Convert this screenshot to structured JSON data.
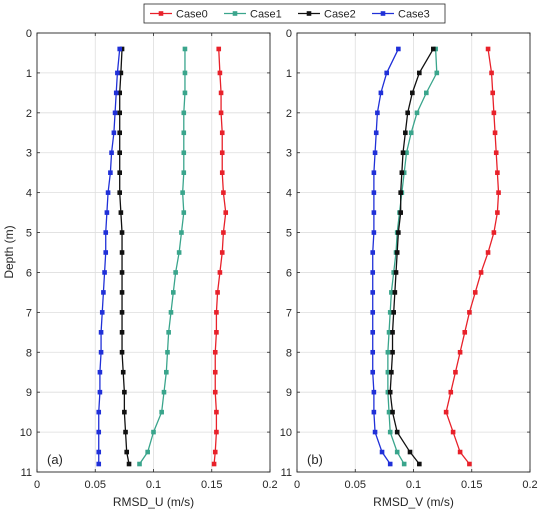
{
  "chart_data": {
    "type": "line",
    "legend": {
      "placement": "top-center",
      "entries": [
        "Case0",
        "Case1",
        "Case2",
        "Case3"
      ]
    },
    "colors": {
      "Case0": "#e8212a",
      "Case1": "#3aa58c",
      "Case2": "#111111",
      "Case3": "#2030d8"
    },
    "shared": {
      "ylabel": "Depth (m)",
      "ylim": [
        0,
        11
      ],
      "y_reversed": true,
      "yticks": [
        "0",
        "1",
        "2",
        "3",
        "4",
        "5",
        "6",
        "7",
        "8",
        "9",
        "10",
        "11"
      ],
      "xlim": [
        0,
        0.2
      ],
      "xticks": [
        "0",
        "0.05",
        "0.1",
        "0.15",
        "0.2"
      ],
      "grid": true
    },
    "panels": [
      {
        "id": "a",
        "panel_label": "(a)",
        "xlabel": "RMSD_U (m/s)",
        "series": [
          {
            "name": "Case0",
            "points": [
              [
                0.156,
                0.4
              ],
              [
                0.157,
                1
              ],
              [
                0.158,
                1.5
              ],
              [
                0.158,
                2
              ],
              [
                0.159,
                2.5
              ],
              [
                0.159,
                3
              ],
              [
                0.159,
                3.5
              ],
              [
                0.16,
                4
              ],
              [
                0.162,
                4.5
              ],
              [
                0.16,
                5
              ],
              [
                0.159,
                5.5
              ],
              [
                0.157,
                6
              ],
              [
                0.155,
                6.5
              ],
              [
                0.154,
                7
              ],
              [
                0.154,
                7.5
              ],
              [
                0.153,
                8
              ],
              [
                0.153,
                8.5
              ],
              [
                0.153,
                9
              ],
              [
                0.154,
                9.5
              ],
              [
                0.154,
                10
              ],
              [
                0.153,
                10.5
              ],
              [
                0.152,
                10.8
              ]
            ]
          },
          {
            "name": "Case1",
            "points": [
              [
                0.127,
                0.4
              ],
              [
                0.127,
                1
              ],
              [
                0.127,
                1.5
              ],
              [
                0.126,
                2
              ],
              [
                0.126,
                2.5
              ],
              [
                0.126,
                3
              ],
              [
                0.126,
                3.5
              ],
              [
                0.125,
                4
              ],
              [
                0.126,
                4.5
              ],
              [
                0.124,
                5
              ],
              [
                0.122,
                5.5
              ],
              [
                0.119,
                6
              ],
              [
                0.117,
                6.5
              ],
              [
                0.115,
                7
              ],
              [
                0.113,
                7.5
              ],
              [
                0.112,
                8
              ],
              [
                0.111,
                8.5
              ],
              [
                0.109,
                9
              ],
              [
                0.107,
                9.5
              ],
              [
                0.1,
                10
              ],
              [
                0.095,
                10.5
              ],
              [
                0.088,
                10.8
              ]
            ]
          },
          {
            "name": "Case2",
            "points": [
              [
                0.073,
                0.4
              ],
              [
                0.072,
                1
              ],
              [
                0.071,
                1.5
              ],
              [
                0.071,
                2
              ],
              [
                0.071,
                2.5
              ],
              [
                0.071,
                3
              ],
              [
                0.071,
                3.5
              ],
              [
                0.071,
                4
              ],
              [
                0.072,
                4.5
              ],
              [
                0.073,
                5
              ],
              [
                0.073,
                5.5
              ],
              [
                0.073,
                6
              ],
              [
                0.073,
                6.5
              ],
              [
                0.073,
                7
              ],
              [
                0.073,
                7.5
              ],
              [
                0.073,
                8
              ],
              [
                0.074,
                8.5
              ],
              [
                0.075,
                9
              ],
              [
                0.075,
                9.5
              ],
              [
                0.076,
                10
              ],
              [
                0.077,
                10.5
              ],
              [
                0.079,
                10.8
              ]
            ]
          },
          {
            "name": "Case3",
            "points": [
              [
                0.071,
                0.4
              ],
              [
                0.069,
                1
              ],
              [
                0.068,
                1.5
              ],
              [
                0.067,
                2
              ],
              [
                0.066,
                2.5
              ],
              [
                0.064,
                3
              ],
              [
                0.063,
                3.5
              ],
              [
                0.061,
                4
              ],
              [
                0.06,
                4.5
              ],
              [
                0.059,
                5
              ],
              [
                0.059,
                5.5
              ],
              [
                0.058,
                6
              ],
              [
                0.057,
                6.5
              ],
              [
                0.056,
                7
              ],
              [
                0.055,
                7.5
              ],
              [
                0.055,
                8
              ],
              [
                0.054,
                8.5
              ],
              [
                0.054,
                9
              ],
              [
                0.053,
                9.5
              ],
              [
                0.053,
                10
              ],
              [
                0.053,
                10.5
              ],
              [
                0.053,
                10.8
              ]
            ]
          }
        ]
      },
      {
        "id": "b",
        "panel_label": "(b)",
        "xlabel": "RMSD_V (m/s)",
        "series": [
          {
            "name": "Case0",
            "points": [
              [
                0.164,
                0.4
              ],
              [
                0.167,
                1
              ],
              [
                0.168,
                1.5
              ],
              [
                0.169,
                2
              ],
              [
                0.17,
                2.5
              ],
              [
                0.171,
                3
              ],
              [
                0.172,
                3.5
              ],
              [
                0.173,
                4
              ],
              [
                0.172,
                4.5
              ],
              [
                0.169,
                5
              ],
              [
                0.164,
                5.5
              ],
              [
                0.158,
                6
              ],
              [
                0.153,
                6.5
              ],
              [
                0.148,
                7
              ],
              [
                0.144,
                7.5
              ],
              [
                0.14,
                8
              ],
              [
                0.136,
                8.5
              ],
              [
                0.132,
                9
              ],
              [
                0.128,
                9.5
              ],
              [
                0.134,
                10
              ],
              [
                0.14,
                10.5
              ],
              [
                0.148,
                10.8
              ]
            ]
          },
          {
            "name": "Case1",
            "points": [
              [
                0.119,
                0.4
              ],
              [
                0.12,
                1
              ],
              [
                0.111,
                1.5
              ],
              [
                0.103,
                2
              ],
              [
                0.098,
                2.5
              ],
              [
                0.094,
                3
              ],
              [
                0.092,
                3.5
              ],
              [
                0.09,
                4
              ],
              [
                0.088,
                4.5
              ],
              [
                0.086,
                5
              ],
              [
                0.085,
                5.5
              ],
              [
                0.083,
                6
              ],
              [
                0.081,
                6.5
              ],
              [
                0.08,
                7
              ],
              [
                0.079,
                7.5
              ],
              [
                0.078,
                8
              ],
              [
                0.078,
                8.5
              ],
              [
                0.078,
                9
              ],
              [
                0.079,
                9.5
              ],
              [
                0.08,
                10
              ],
              [
                0.086,
                10.5
              ],
              [
                0.092,
                10.8
              ]
            ]
          },
          {
            "name": "Case2",
            "points": [
              [
                0.117,
                0.4
              ],
              [
                0.105,
                1
              ],
              [
                0.099,
                1.5
              ],
              [
                0.095,
                2
              ],
              [
                0.093,
                2.5
              ],
              [
                0.091,
                3
              ],
              [
                0.09,
                3.5
              ],
              [
                0.089,
                4
              ],
              [
                0.089,
                4.5
              ],
              [
                0.087,
                5
              ],
              [
                0.086,
                5.5
              ],
              [
                0.085,
                6
              ],
              [
                0.084,
                6.5
              ],
              [
                0.083,
                7
              ],
              [
                0.082,
                7.5
              ],
              [
                0.082,
                8
              ],
              [
                0.081,
                8.5
              ],
              [
                0.08,
                9
              ],
              [
                0.082,
                9.5
              ],
              [
                0.086,
                10
              ],
              [
                0.097,
                10.5
              ],
              [
                0.105,
                10.8
              ]
            ]
          },
          {
            "name": "Case3",
            "points": [
              [
                0.087,
                0.4
              ],
              [
                0.077,
                1
              ],
              [
                0.072,
                1.5
              ],
              [
                0.069,
                2
              ],
              [
                0.068,
                2.5
              ],
              [
                0.067,
                3
              ],
              [
                0.066,
                3.5
              ],
              [
                0.066,
                4
              ],
              [
                0.066,
                4.5
              ],
              [
                0.066,
                5
              ],
              [
                0.065,
                5.5
              ],
              [
                0.065,
                6
              ],
              [
                0.065,
                6.5
              ],
              [
                0.065,
                7
              ],
              [
                0.065,
                7.5
              ],
              [
                0.065,
                8
              ],
              [
                0.065,
                8.5
              ],
              [
                0.066,
                9
              ],
              [
                0.066,
                9.5
              ],
              [
                0.067,
                10
              ],
              [
                0.073,
                10.5
              ],
              [
                0.08,
                10.8
              ]
            ]
          }
        ]
      }
    ]
  }
}
